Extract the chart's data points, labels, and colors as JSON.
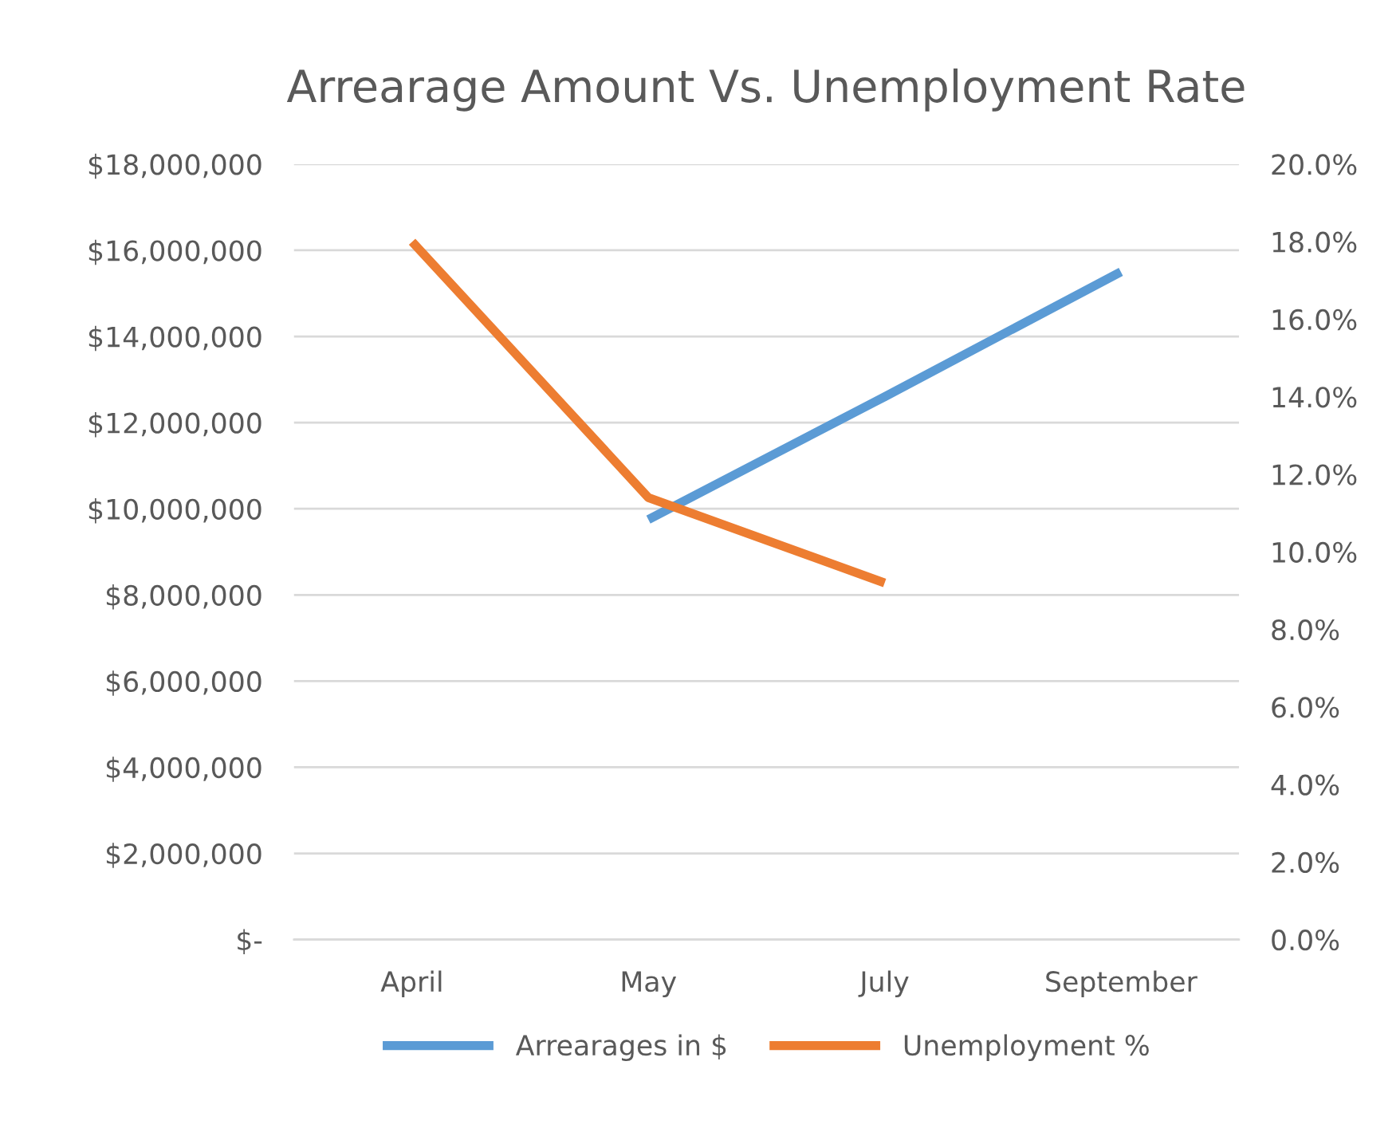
{
  "chart_data": {
    "type": "line",
    "title": "Arrearage Amount Vs. Unemployment Rate",
    "categories": [
      "April",
      "May",
      "July",
      "September"
    ],
    "series": [
      {
        "name": "Arrearages in $",
        "color": "#5b9bd5",
        "values": [
          null,
          9750000,
          12600000,
          15500000
        ]
      },
      {
        "name": "Unemployment %",
        "color": "#ed7d31",
        "values": [
          18.0,
          11.4,
          9.2,
          null
        ],
        "axis": "y2"
      }
    ],
    "ylim": [
      0,
      18000000
    ],
    "yticks": [
      {
        "value": 0,
        "label": "$-"
      },
      {
        "value": 2000000,
        "label": "$2,000,000"
      },
      {
        "value": 4000000,
        "label": "$4,000,000"
      },
      {
        "value": 6000000,
        "label": "$6,000,000"
      },
      {
        "value": 8000000,
        "label": "$8,000,000"
      },
      {
        "value": 10000000,
        "label": "$10,000,000"
      },
      {
        "value": 12000000,
        "label": "$12,000,000"
      },
      {
        "value": 14000000,
        "label": "$14,000,000"
      },
      {
        "value": 16000000,
        "label": "$16,000,000"
      },
      {
        "value": 18000000,
        "label": "$18,000,000"
      }
    ],
    "y2lim": [
      0,
      20
    ],
    "y2ticks": [
      {
        "value": 0,
        "label": "0.0%"
      },
      {
        "value": 2,
        "label": "2.0%"
      },
      {
        "value": 4,
        "label": "4.0%"
      },
      {
        "value": 6,
        "label": "6.0%"
      },
      {
        "value": 8,
        "label": "8.0%"
      },
      {
        "value": 10,
        "label": "10.0%"
      },
      {
        "value": 12,
        "label": "12.0%"
      },
      {
        "value": 14,
        "label": "14.0%"
      },
      {
        "value": 16,
        "label": "16.0%"
      },
      {
        "value": 18,
        "label": "18.0%"
      },
      {
        "value": 20,
        "label": "20.0%"
      }
    ],
    "grid": "y",
    "legend": "bottom",
    "marker": "none",
    "line_style": "solid"
  }
}
